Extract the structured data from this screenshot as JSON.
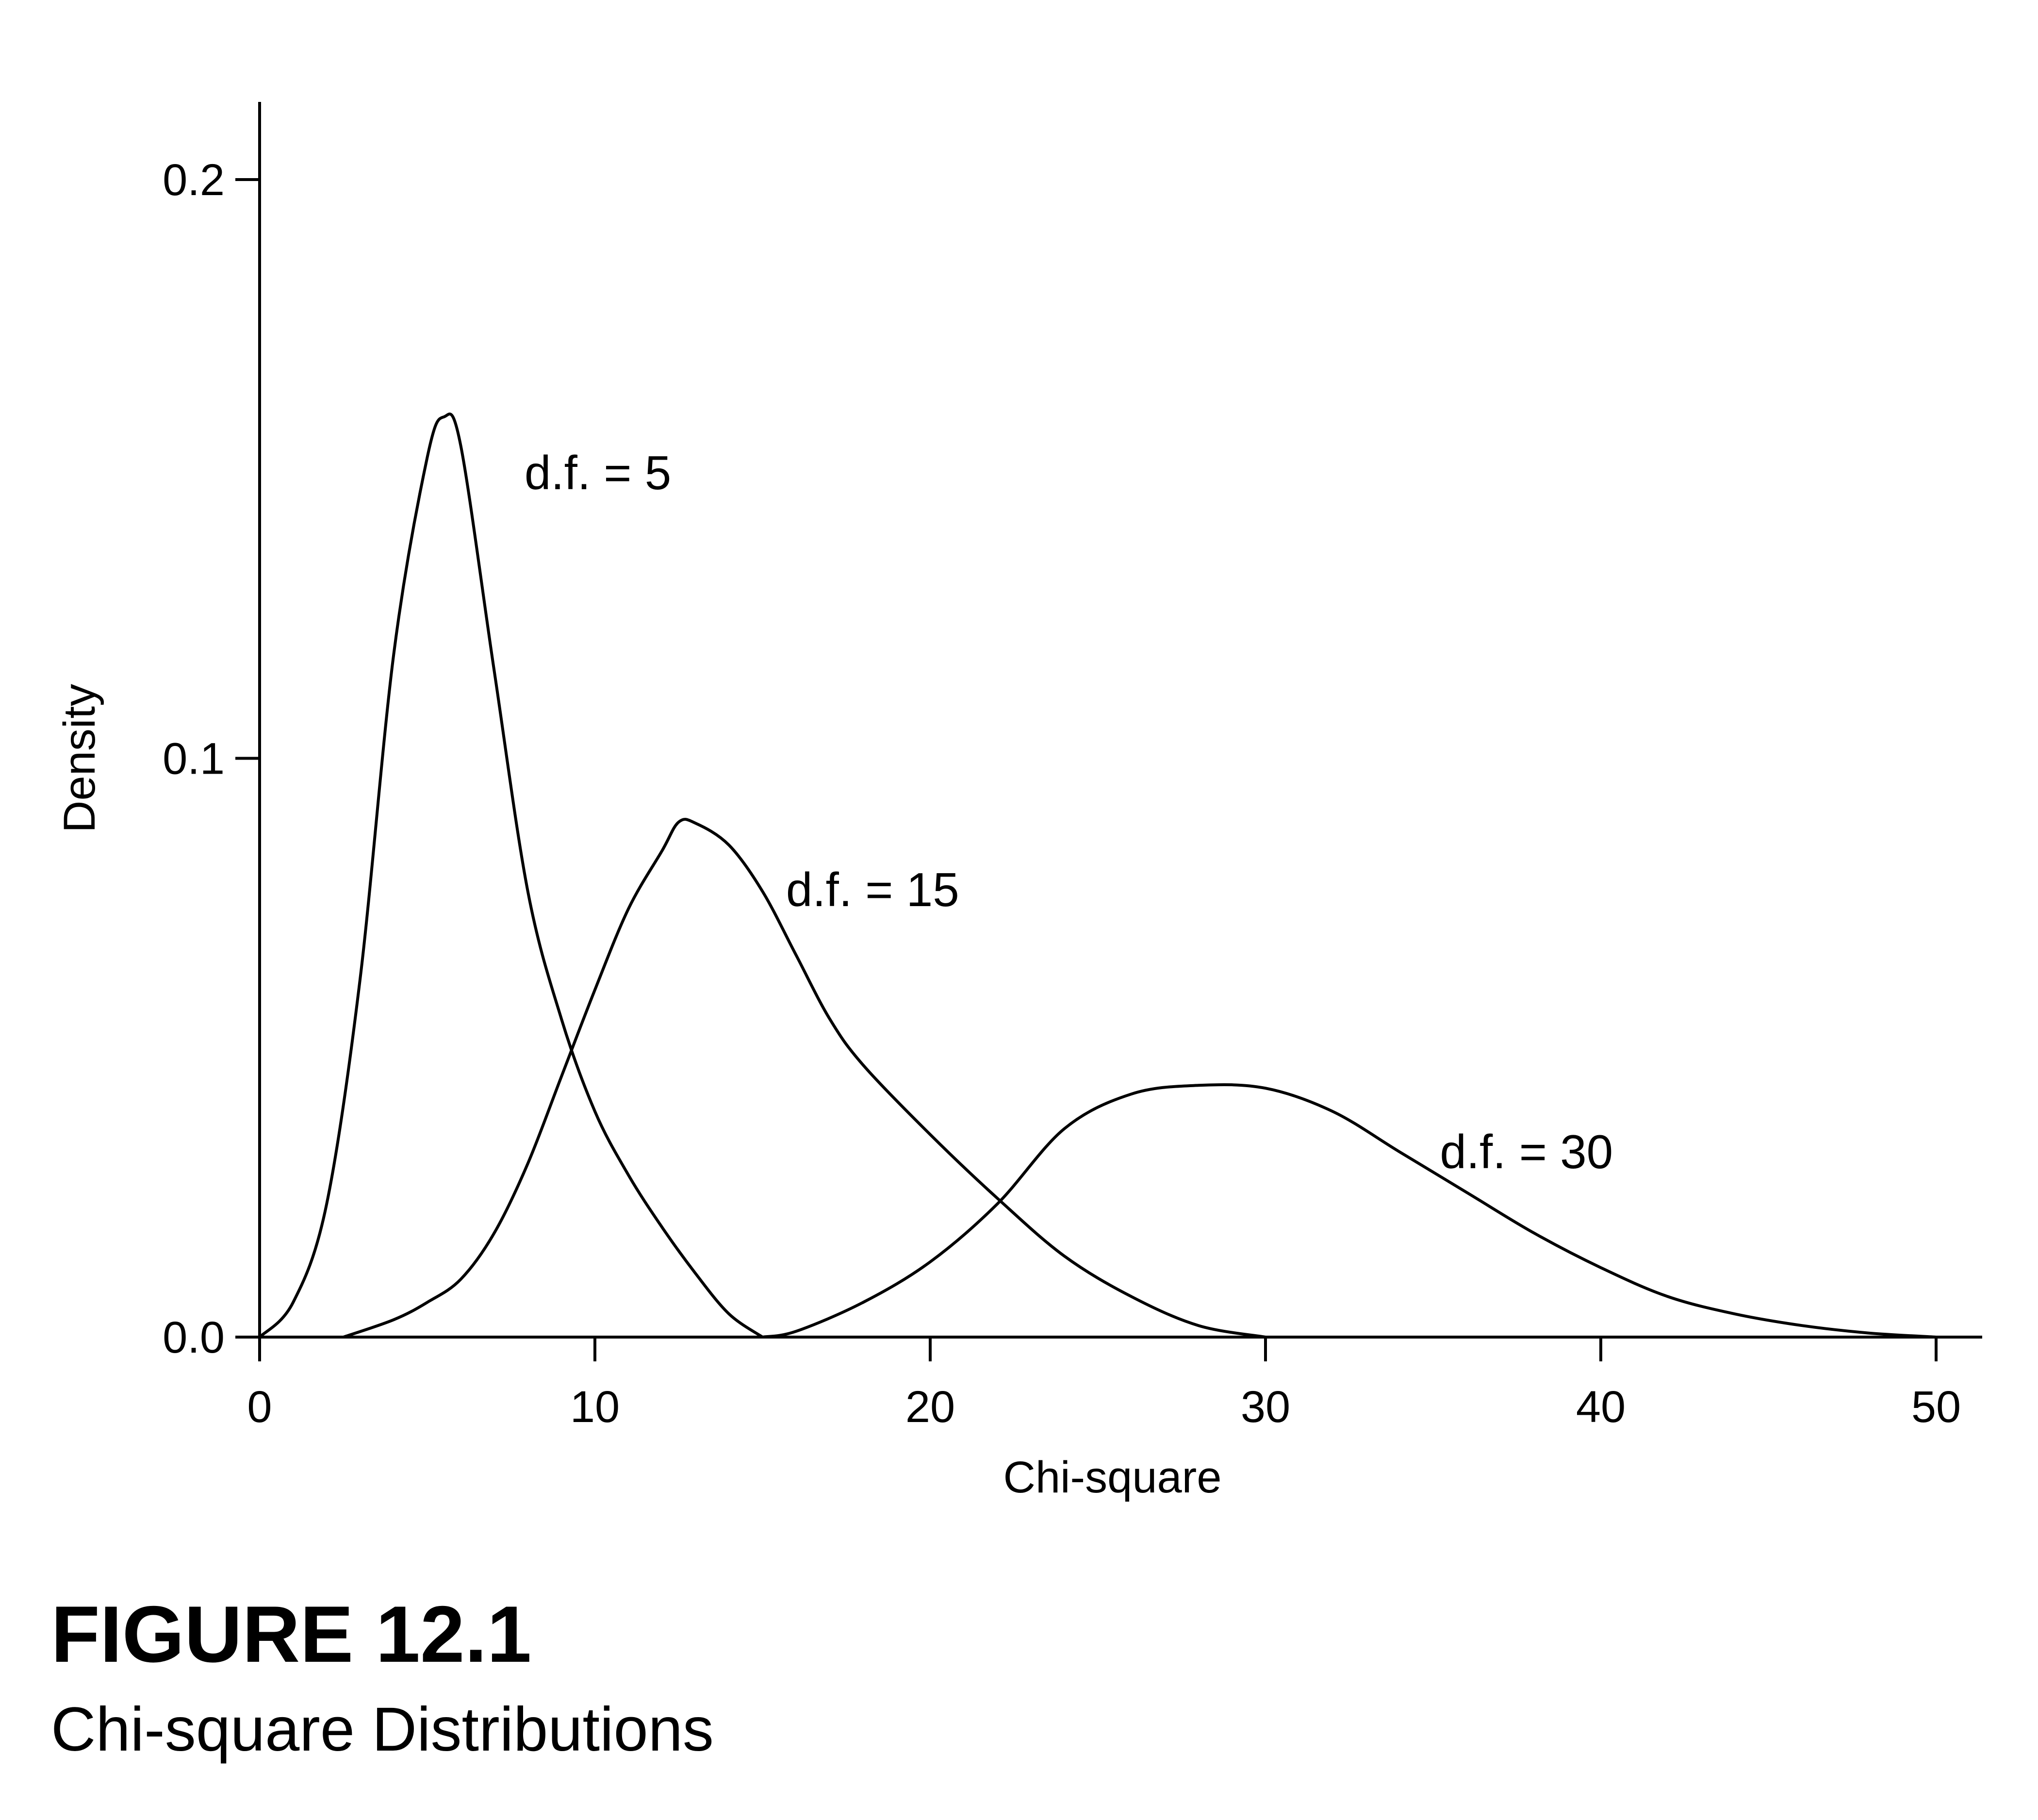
{
  "figure": {
    "number": "FIGURE 12.1",
    "caption": "Chi-square Distributions"
  },
  "chart_data": {
    "type": "line",
    "title": "",
    "xlabel": "Chi-square",
    "ylabel": "Density",
    "xlim": [
      0,
      51.5
    ],
    "ylim": [
      0,
      0.2
    ],
    "x_ticks": [
      0,
      10,
      20,
      30,
      40,
      50
    ],
    "y_ticks": [
      0.0,
      0.1,
      0.2
    ],
    "x_tick_labels": [
      "0",
      "10",
      "20",
      "30",
      "40",
      "50"
    ],
    "y_tick_labels": [
      "0.0",
      "0.1",
      "0.2"
    ],
    "grid": false,
    "legend": "none",
    "series": [
      {
        "name": "d.f. = 5",
        "label_at": [
          7.9,
          0.1495
        ],
        "x": [
          0,
          1,
          2,
          3,
          4,
          5,
          5.5,
          6,
          7,
          8,
          9,
          10,
          11,
          12,
          13,
          14,
          15
        ],
        "y": [
          0,
          0.006,
          0.023,
          0.062,
          0.118,
          0.152,
          0.159,
          0.154,
          0.115,
          0.077,
          0.055,
          0.039,
          0.028,
          0.019,
          0.011,
          0.004,
          0.0
        ]
      },
      {
        "name": "d.f. = 15",
        "label_at": [
          15.7,
          0.0775
        ],
        "x": [
          2.5,
          4,
          5,
          6,
          7,
          8,
          9,
          10,
          11,
          12,
          12.5,
          13,
          14,
          15,
          16,
          17,
          18,
          20,
          22,
          24,
          26,
          28,
          30
        ],
        "y": [
          0,
          0.003,
          0.006,
          0.01,
          0.018,
          0.03,
          0.045,
          0.06,
          0.074,
          0.084,
          0.089,
          0.0888,
          0.085,
          0.077,
          0.066,
          0.055,
          0.047,
          0.035,
          0.024,
          0.014,
          0.007,
          0.002,
          0.0
        ]
      },
      {
        "name": "d.f. = 30",
        "label_at": [
          35.2,
          0.0322
        ],
        "x": [
          15,
          16,
          18,
          20,
          22,
          24,
          26,
          28,
          30,
          32,
          34,
          36,
          38,
          40,
          42,
          44,
          46,
          48,
          50
        ],
        "y": [
          0,
          0.001,
          0.006,
          0.013,
          0.023,
          0.036,
          0.042,
          0.0435,
          0.043,
          0.039,
          0.032,
          0.025,
          0.018,
          0.012,
          0.007,
          0.004,
          0.002,
          0.0007,
          0.0
        ]
      }
    ]
  }
}
